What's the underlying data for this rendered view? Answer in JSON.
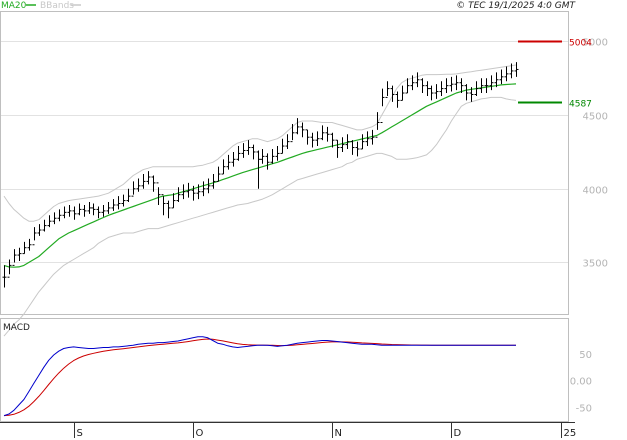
{
  "header": {
    "ma_label": "MA20",
    "bb_label": "BBands",
    "copyright": "© TEC 19/1/2025 4:0 GMT"
  },
  "colors": {
    "price": "#000000",
    "ma": "#22aa22",
    "bbands": "#c8c8c8",
    "resistance": "#cc0000",
    "support": "#008800",
    "macd": "#0000cc",
    "signal": "#cc0000",
    "grid": "#e2e2e2"
  },
  "chart_data": [
    {
      "type": "line",
      "panel": "price",
      "title": "",
      "ylim": [
        3150,
        5200
      ],
      "y_ticks": [
        {
          "value": 3500,
          "label": "3500"
        },
        {
          "value": 4000,
          "label": "4000"
        },
        {
          "value": 4500,
          "label": "4500"
        },
        {
          "value": 5000,
          "label": "5000"
        }
      ],
      "x_ticks": [
        "S",
        "O",
        "N",
        "D",
        "25"
      ],
      "levels": [
        {
          "name": "resistance",
          "value": 5004,
          "label": "5004"
        },
        {
          "name": "support",
          "value": 4587,
          "label": "4587"
        }
      ],
      "series": [
        {
          "name": "",
          "kind": "ohlc",
          "close": [
            3400,
            3480,
            3550,
            3560,
            3600,
            3620,
            3700,
            3720,
            3750,
            3780,
            3800,
            3820,
            3840,
            3850,
            3830,
            3860,
            3850,
            3870,
            3860,
            3840,
            3850,
            3870,
            3890,
            3900,
            3920,
            3950,
            4000,
            4020,
            4050,
            4080,
            4040,
            3960,
            3900,
            3870,
            3920,
            3960,
            3980,
            3990,
            3970,
            3980,
            4000,
            4020,
            4050,
            4100,
            4150,
            4180,
            4200,
            4240,
            4260,
            4280,
            4250,
            4200,
            4220,
            4180,
            4220,
            4240,
            4290,
            4320,
            4380,
            4420,
            4400,
            4350,
            4330,
            4340,
            4380,
            4370,
            4330,
            4280,
            4300,
            4320,
            4280,
            4270,
            4320,
            4340,
            4350,
            4450,
            4620,
            4680,
            4640,
            4600,
            4650,
            4700,
            4720,
            4740,
            4700,
            4680,
            4650,
            4660,
            4680,
            4700,
            4710,
            4720,
            4700,
            4650,
            4640,
            4680,
            4700,
            4700,
            4720,
            4740,
            4760,
            4780,
            4800,
            4810
          ],
          "high": [
            3480,
            3520,
            3590,
            3600,
            3640,
            3660,
            3740,
            3760,
            3790,
            3820,
            3840,
            3860,
            3880,
            3890,
            3880,
            3900,
            3890,
            3910,
            3900,
            3880,
            3890,
            3910,
            3930,
            3950,
            3960,
            4000,
            4050,
            4070,
            4100,
            4120,
            4090,
            4010,
            3950,
            3920,
            3970,
            4010,
            4030,
            4040,
            4020,
            4030,
            4050,
            4070,
            4100,
            4150,
            4200,
            4230,
            4250,
            4290,
            4310,
            4330,
            4300,
            4260,
            4270,
            4240,
            4270,
            4290,
            4340,
            4370,
            4440,
            4480,
            4450,
            4400,
            4380,
            4390,
            4430,
            4420,
            4380,
            4330,
            4350,
            4370,
            4330,
            4320,
            4370,
            4390,
            4400,
            4520,
            4680,
            4730,
            4700,
            4660,
            4700,
            4750,
            4770,
            4790,
            4750,
            4730,
            4700,
            4710,
            4730,
            4750,
            4760,
            4770,
            4750,
            4710,
            4690,
            4730,
            4750,
            4750,
            4770,
            4790,
            4810,
            4830,
            4850,
            4860
          ],
          "low": [
            3330,
            3420,
            3500,
            3510,
            3560,
            3580,
            3650,
            3680,
            3710,
            3740,
            3760,
            3780,
            3800,
            3810,
            3790,
            3820,
            3810,
            3830,
            3820,
            3800,
            3810,
            3830,
            3850,
            3860,
            3880,
            3910,
            3960,
            3980,
            4000,
            4030,
            3980,
            3890,
            3820,
            3800,
            3870,
            3910,
            3930,
            3940,
            3920,
            3930,
            3950,
            3970,
            4000,
            4050,
            4100,
            4130,
            4150,
            4190,
            4210,
            4230,
            4200,
            4000,
            4170,
            4130,
            4170,
            4190,
            4240,
            4270,
            4330,
            4370,
            4350,
            4300,
            4280,
            4290,
            4330,
            4320,
            4280,
            4210,
            4250,
            4270,
            4230,
            4220,
            4270,
            4290,
            4300,
            4400,
            4560,
            4630,
            4590,
            4550,
            4600,
            4650,
            4670,
            4690,
            4650,
            4630,
            4600,
            4610,
            4630,
            4650,
            4660,
            4670,
            4650,
            4600,
            4590,
            4630,
            4650,
            4650,
            4670,
            4690,
            4710,
            4730,
            4750,
            4760
          ]
        },
        {
          "name": "MA20",
          "values": [
            3480,
            3470,
            3468,
            3470,
            3480,
            3500,
            3520,
            3540,
            3570,
            3600,
            3630,
            3660,
            3680,
            3700,
            3715,
            3730,
            3745,
            3760,
            3775,
            3790,
            3805,
            3820,
            3832,
            3844,
            3856,
            3868,
            3880,
            3892,
            3904,
            3916,
            3928,
            3940,
            3950,
            3955,
            3960,
            3970,
            3980,
            3990,
            4000,
            4010,
            4020,
            4030,
            4040,
            4050,
            4062,
            4074,
            4086,
            4098,
            4110,
            4120,
            4130,
            4140,
            4150,
            4160,
            4170,
            4180,
            4192,
            4204,
            4216,
            4228,
            4240,
            4250,
            4258,
            4266,
            4274,
            4282,
            4290,
            4298,
            4306,
            4314,
            4322,
            4330,
            4338,
            4346,
            4354,
            4362,
            4380,
            4400,
            4420,
            4440,
            4460,
            4480,
            4500,
            4520,
            4540,
            4560,
            4575,
            4590,
            4605,
            4620,
            4635,
            4650,
            4660,
            4670,
            4675,
            4680,
            4685,
            4690,
            4695,
            4700,
            4705,
            4708,
            4710,
            4712
          ]
        },
        {
          "name": "BBands-upper",
          "values": [
            3950,
            3900,
            3860,
            3830,
            3800,
            3780,
            3780,
            3790,
            3820,
            3850,
            3880,
            3900,
            3910,
            3920,
            3925,
            3930,
            3935,
            3940,
            3945,
            3950,
            3960,
            3970,
            3990,
            4010,
            4030,
            4060,
            4090,
            4110,
            4130,
            4140,
            4150,
            4150,
            4150,
            4150,
            4150,
            4150,
            4150,
            4150,
            4150,
            4155,
            4160,
            4170,
            4180,
            4200,
            4230,
            4260,
            4290,
            4310,
            4320,
            4330,
            4340,
            4340,
            4330,
            4320,
            4330,
            4340,
            4360,
            4390,
            4420,
            4450,
            4460,
            4460,
            4460,
            4455,
            4450,
            4450,
            4450,
            4440,
            4430,
            4420,
            4410,
            4400,
            4400,
            4410,
            4420,
            4440,
            4500,
            4560,
            4620,
            4680,
            4720,
            4740,
            4750,
            4760,
            4770,
            4775,
            4775,
            4775,
            4776,
            4777,
            4778,
            4780,
            4785,
            4790,
            4795,
            4800,
            4805,
            4810,
            4815,
            4820,
            4825,
            4830,
            4835,
            4840
          ]
        },
        {
          "name": "BBands-lower",
          "values": [
            3000,
            3040,
            3080,
            3110,
            3150,
            3200,
            3250,
            3300,
            3340,
            3380,
            3420,
            3450,
            3480,
            3500,
            3520,
            3540,
            3560,
            3580,
            3600,
            3630,
            3650,
            3670,
            3680,
            3690,
            3700,
            3700,
            3700,
            3710,
            3720,
            3730,
            3730,
            3730,
            3740,
            3750,
            3760,
            3770,
            3780,
            3790,
            3800,
            3810,
            3820,
            3830,
            3840,
            3850,
            3860,
            3870,
            3880,
            3890,
            3895,
            3900,
            3910,
            3920,
            3930,
            3945,
            3960,
            3980,
            4000,
            4020,
            4040,
            4060,
            4070,
            4080,
            4090,
            4100,
            4110,
            4120,
            4130,
            4140,
            4150,
            4170,
            4180,
            4200,
            4210,
            4220,
            4230,
            4240,
            4240,
            4230,
            4220,
            4200,
            4200,
            4200,
            4205,
            4210,
            4220,
            4230,
            4260,
            4300,
            4350,
            4400,
            4460,
            4510,
            4560,
            4580,
            4590,
            4600,
            4610,
            4615,
            4620,
            4620,
            4620,
            4610,
            4605,
            4600
          ]
        }
      ]
    },
    {
      "type": "line",
      "panel": "macd",
      "title": "MACD",
      "ylim": [
        -75,
        115
      ],
      "y_ticks": [
        {
          "value": 50,
          "label": "50"
        },
        {
          "value": 0,
          "label": "0.00"
        },
        {
          "value": -50,
          "label": "-50"
        }
      ],
      "series": [
        {
          "name": "",
          "values": [
            -65,
            -62,
            -55,
            -45,
            -35,
            -20,
            -5,
            10,
            25,
            38,
            48,
            55,
            60,
            62,
            63,
            62,
            61,
            60,
            60,
            61,
            62,
            62,
            63,
            63,
            64,
            65,
            66,
            68,
            69,
            70,
            70,
            71,
            71,
            72,
            73,
            74,
            76,
            78,
            80,
            82,
            82,
            80,
            75,
            70,
            68,
            65,
            63,
            62,
            63,
            64,
            65,
            66,
            66,
            66,
            65,
            64,
            65,
            66,
            68,
            70,
            71,
            72,
            73,
            74,
            75,
            75,
            74,
            73,
            72,
            71,
            70,
            69,
            68,
            68,
            68,
            67,
            66,
            66,
            66,
            66,
            66,
            66,
            66,
            66,
            66,
            66,
            66,
            66,
            66,
            66,
            66,
            66,
            66,
            66,
            66,
            66,
            66,
            66,
            66,
            66,
            66,
            66,
            66,
            66
          ]
        }
      ]
    }
  ]
}
